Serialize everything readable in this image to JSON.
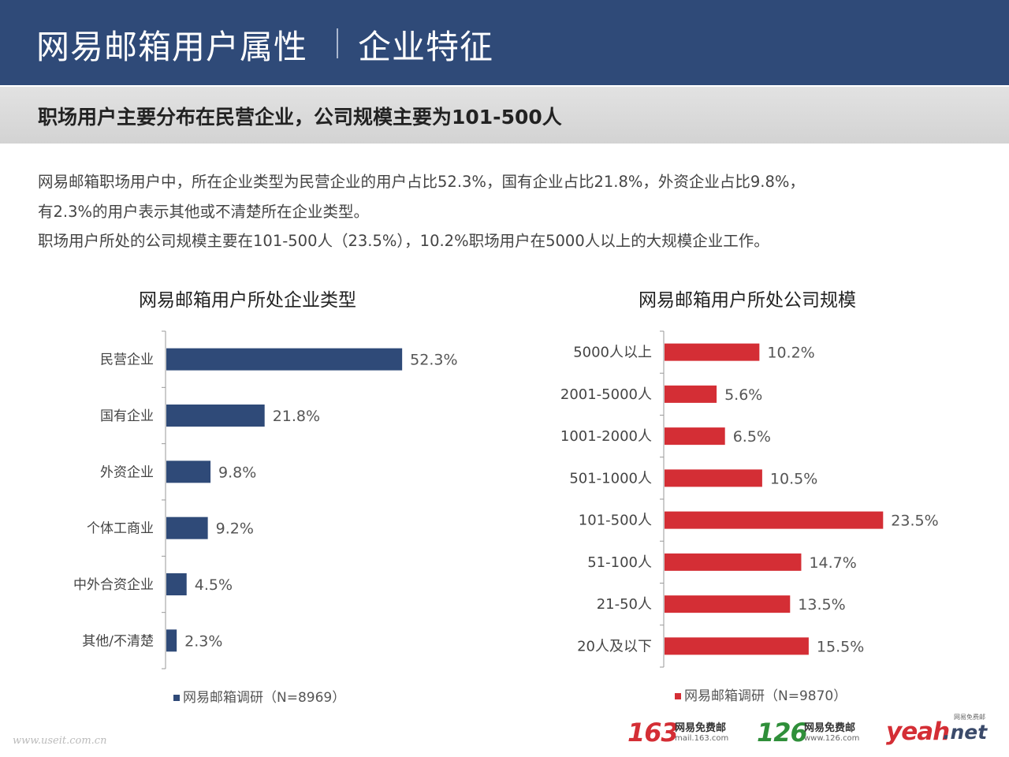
{
  "header": {
    "title": "网易邮箱用户属性",
    "subtitle": "企业特征"
  },
  "banner": "职场用户主要分布在民营企业，公司规模主要为101-500人",
  "description": {
    "line1": "网易邮箱职场用户中，所在企业类型为民营企业的用户占比52.3%，国有企业占比21.8%，外资企业占比9.8%，",
    "line2": "有2.3%的用户表示其他或不清楚所在企业类型。",
    "line3": "职场用户所处的公司规模主要在101-500人（23.5%），10.2%职场用户在5000人以上的大规模企业工作。"
  },
  "chart_data": [
    {
      "type": "bar",
      "orientation": "horizontal",
      "title": "网易邮箱用户所处企业类型",
      "categories": [
        "民营企业",
        "国有企业",
        "外资企业",
        "个体工商业",
        "中外合资企业",
        "其他/不清楚"
      ],
      "values": [
        52.3,
        21.8,
        9.8,
        9.2,
        4.5,
        2.3
      ],
      "labels": [
        "52.3%",
        "21.8%",
        "9.8%",
        "9.2%",
        "4.5%",
        "2.3%"
      ],
      "legend": "网易邮箱调研（N=8969）",
      "color": "#2f4a78",
      "grid": false
    },
    {
      "type": "bar",
      "orientation": "horizontal",
      "title": "网易邮箱用户所处公司规模",
      "categories": [
        "5000人以上",
        "2001-5000人",
        "1001-2000人",
        "501-1000人",
        "101-500人",
        "51-100人",
        "21-50人",
        "20人及以下"
      ],
      "values": [
        10.2,
        5.6,
        6.5,
        10.5,
        23.5,
        14.7,
        13.5,
        15.5
      ],
      "labels": [
        "10.2%",
        "5.6%",
        "6.5%",
        "10.5%",
        "23.5%",
        "14.7%",
        "13.5%",
        "15.5%"
      ],
      "legend": "网易邮箱调研（N=9870）",
      "color": "#d42e35",
      "grid": false
    }
  ],
  "footer": {
    "logo1_num": "163",
    "logo1_name": "网易免费邮",
    "logo1_url": "mail.163.com",
    "logo2_num": "126",
    "logo2_name": "网易免费邮",
    "logo2_url": "www.126.com",
    "logo3_main": "yeah",
    "logo3_suffix": ".net",
    "logo3_tag": "网易免费邮",
    "watermark": "www.useit.com.cn"
  }
}
